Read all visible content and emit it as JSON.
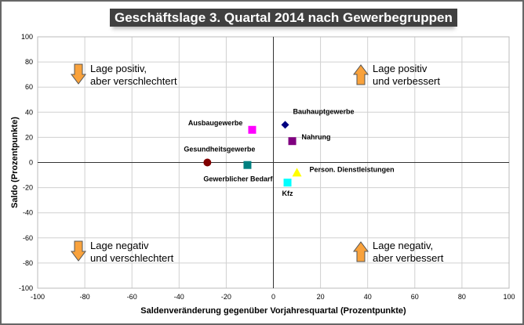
{
  "chart_data": {
    "type": "scatter",
    "title": "Geschäftslage 3. Quartal 2014 nach Gewerbegruppen",
    "xlabel": "Saldenveränderung gegenüber Vorjahresquartal (Prozentpunkte)",
    "ylabel": "Saldo (Prozentpunkte)",
    "xlim": [
      -100,
      100
    ],
    "ylim": [
      -100,
      100
    ],
    "xticks": [
      -100,
      -80,
      -60,
      -40,
      -20,
      0,
      20,
      40,
      60,
      80,
      100
    ],
    "yticks": [
      -100,
      -80,
      -60,
      -40,
      -20,
      0,
      20,
      40,
      60,
      80,
      100
    ],
    "grid": true,
    "points": [
      {
        "label": "Bauhauptgewerbe",
        "x": 5,
        "y": 30,
        "marker": "diamond",
        "color": "#000080"
      },
      {
        "label": "Ausbaugewerbe",
        "x": -9,
        "y": 26,
        "marker": "square",
        "color": "#ff00ff"
      },
      {
        "label": "Nahrung",
        "x": 8,
        "y": 17,
        "marker": "square",
        "color": "#800080"
      },
      {
        "label": "Gesundheitsgewerbe",
        "x": -28,
        "y": 0,
        "marker": "circle",
        "color": "#800000"
      },
      {
        "label": "Gewerblicher Bedarf",
        "x": -11,
        "y": -2,
        "marker": "square",
        "color": "#008080"
      },
      {
        "label": "Person. Dienstleistungen",
        "x": 10,
        "y": -8,
        "marker": "triangle",
        "color": "#ffff00"
      },
      {
        "label": "Kfz",
        "x": 6,
        "y": -16,
        "marker": "square",
        "color": "#00ffff"
      }
    ],
    "annotations": [
      {
        "quadrant": "top-left",
        "arrow": "down",
        "lines": [
          "Lage positiv,",
          "aber verschlechtert"
        ]
      },
      {
        "quadrant": "top-right",
        "arrow": "up",
        "lines": [
          "Lage positiv",
          "und verbessert"
        ]
      },
      {
        "quadrant": "bottom-left",
        "arrow": "down",
        "lines": [
          "Lage negativ",
          "und verschlechtert"
        ]
      },
      {
        "quadrant": "bottom-right",
        "arrow": "up",
        "lines": [
          "Lage negativ,",
          "aber verbessert"
        ]
      }
    ],
    "arrow_color": "#f9a23c"
  }
}
